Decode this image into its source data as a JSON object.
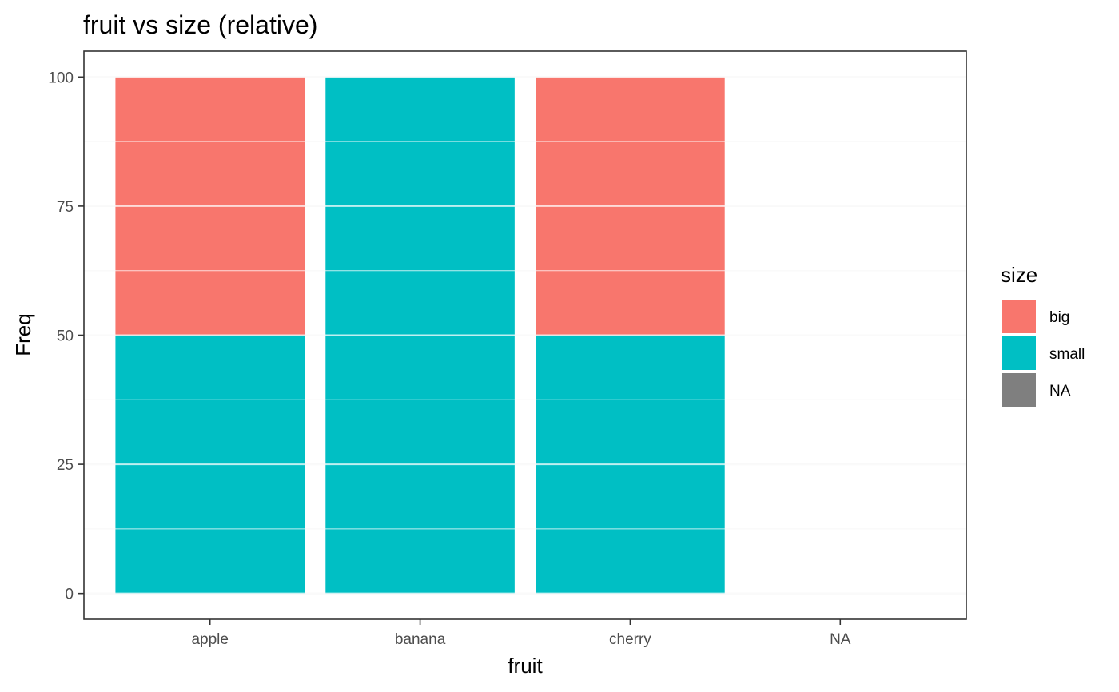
{
  "chart_data": {
    "type": "bar",
    "stacked": true,
    "title": "fruit vs size (relative)",
    "xlabel": "fruit",
    "ylabel": "Freq",
    "categories": [
      "apple",
      "banana",
      "cherry",
      "NA"
    ],
    "series": [
      {
        "name": "small",
        "color": "#00BFC4",
        "values": [
          50,
          100,
          50,
          0
        ]
      },
      {
        "name": "big",
        "color": "#F8766D",
        "values": [
          50,
          0,
          50,
          0
        ]
      }
    ],
    "ylim": [
      -5,
      105
    ],
    "yticks": [
      0,
      25,
      50,
      75,
      100
    ],
    "ytick_labels": [
      "0",
      "25",
      "50",
      "75",
      "100"
    ],
    "grid": true,
    "legend": {
      "title": "size",
      "position": "right",
      "items": [
        {
          "label": "big",
          "color": "#F8766D"
        },
        {
          "label": "small",
          "color": "#00BFC4"
        },
        {
          "label": "NA",
          "color": "#7F7F7F"
        }
      ]
    }
  }
}
